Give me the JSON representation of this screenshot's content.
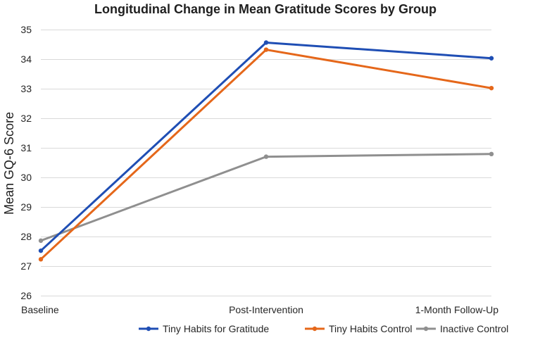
{
  "chart_data": {
    "type": "line",
    "title": "Longitudinal Change in Mean Gratitude Scores by Group",
    "xlabel": "",
    "ylabel": "Mean GQ-6 Score",
    "categories": [
      "Baseline",
      "Post-Intervention",
      "1-Month Follow-Up"
    ],
    "ylim": [
      26,
      35
    ],
    "yticks": [
      26,
      27,
      28,
      29,
      30,
      31,
      32,
      33,
      34,
      35
    ],
    "grid": true,
    "legend_position": "bottom",
    "series": [
      {
        "name": "Tiny Habits for Gratitude",
        "color": "#1f4eb4",
        "values": [
          27.52,
          34.56,
          34.03
        ]
      },
      {
        "name": "Tiny Habits Control",
        "color": "#e5671a",
        "values": [
          27.23,
          34.32,
          33.02
        ]
      },
      {
        "name": "Inactive Control",
        "color": "#8f8f8f",
        "values": [
          27.86,
          30.7,
          30.79
        ]
      }
    ]
  }
}
